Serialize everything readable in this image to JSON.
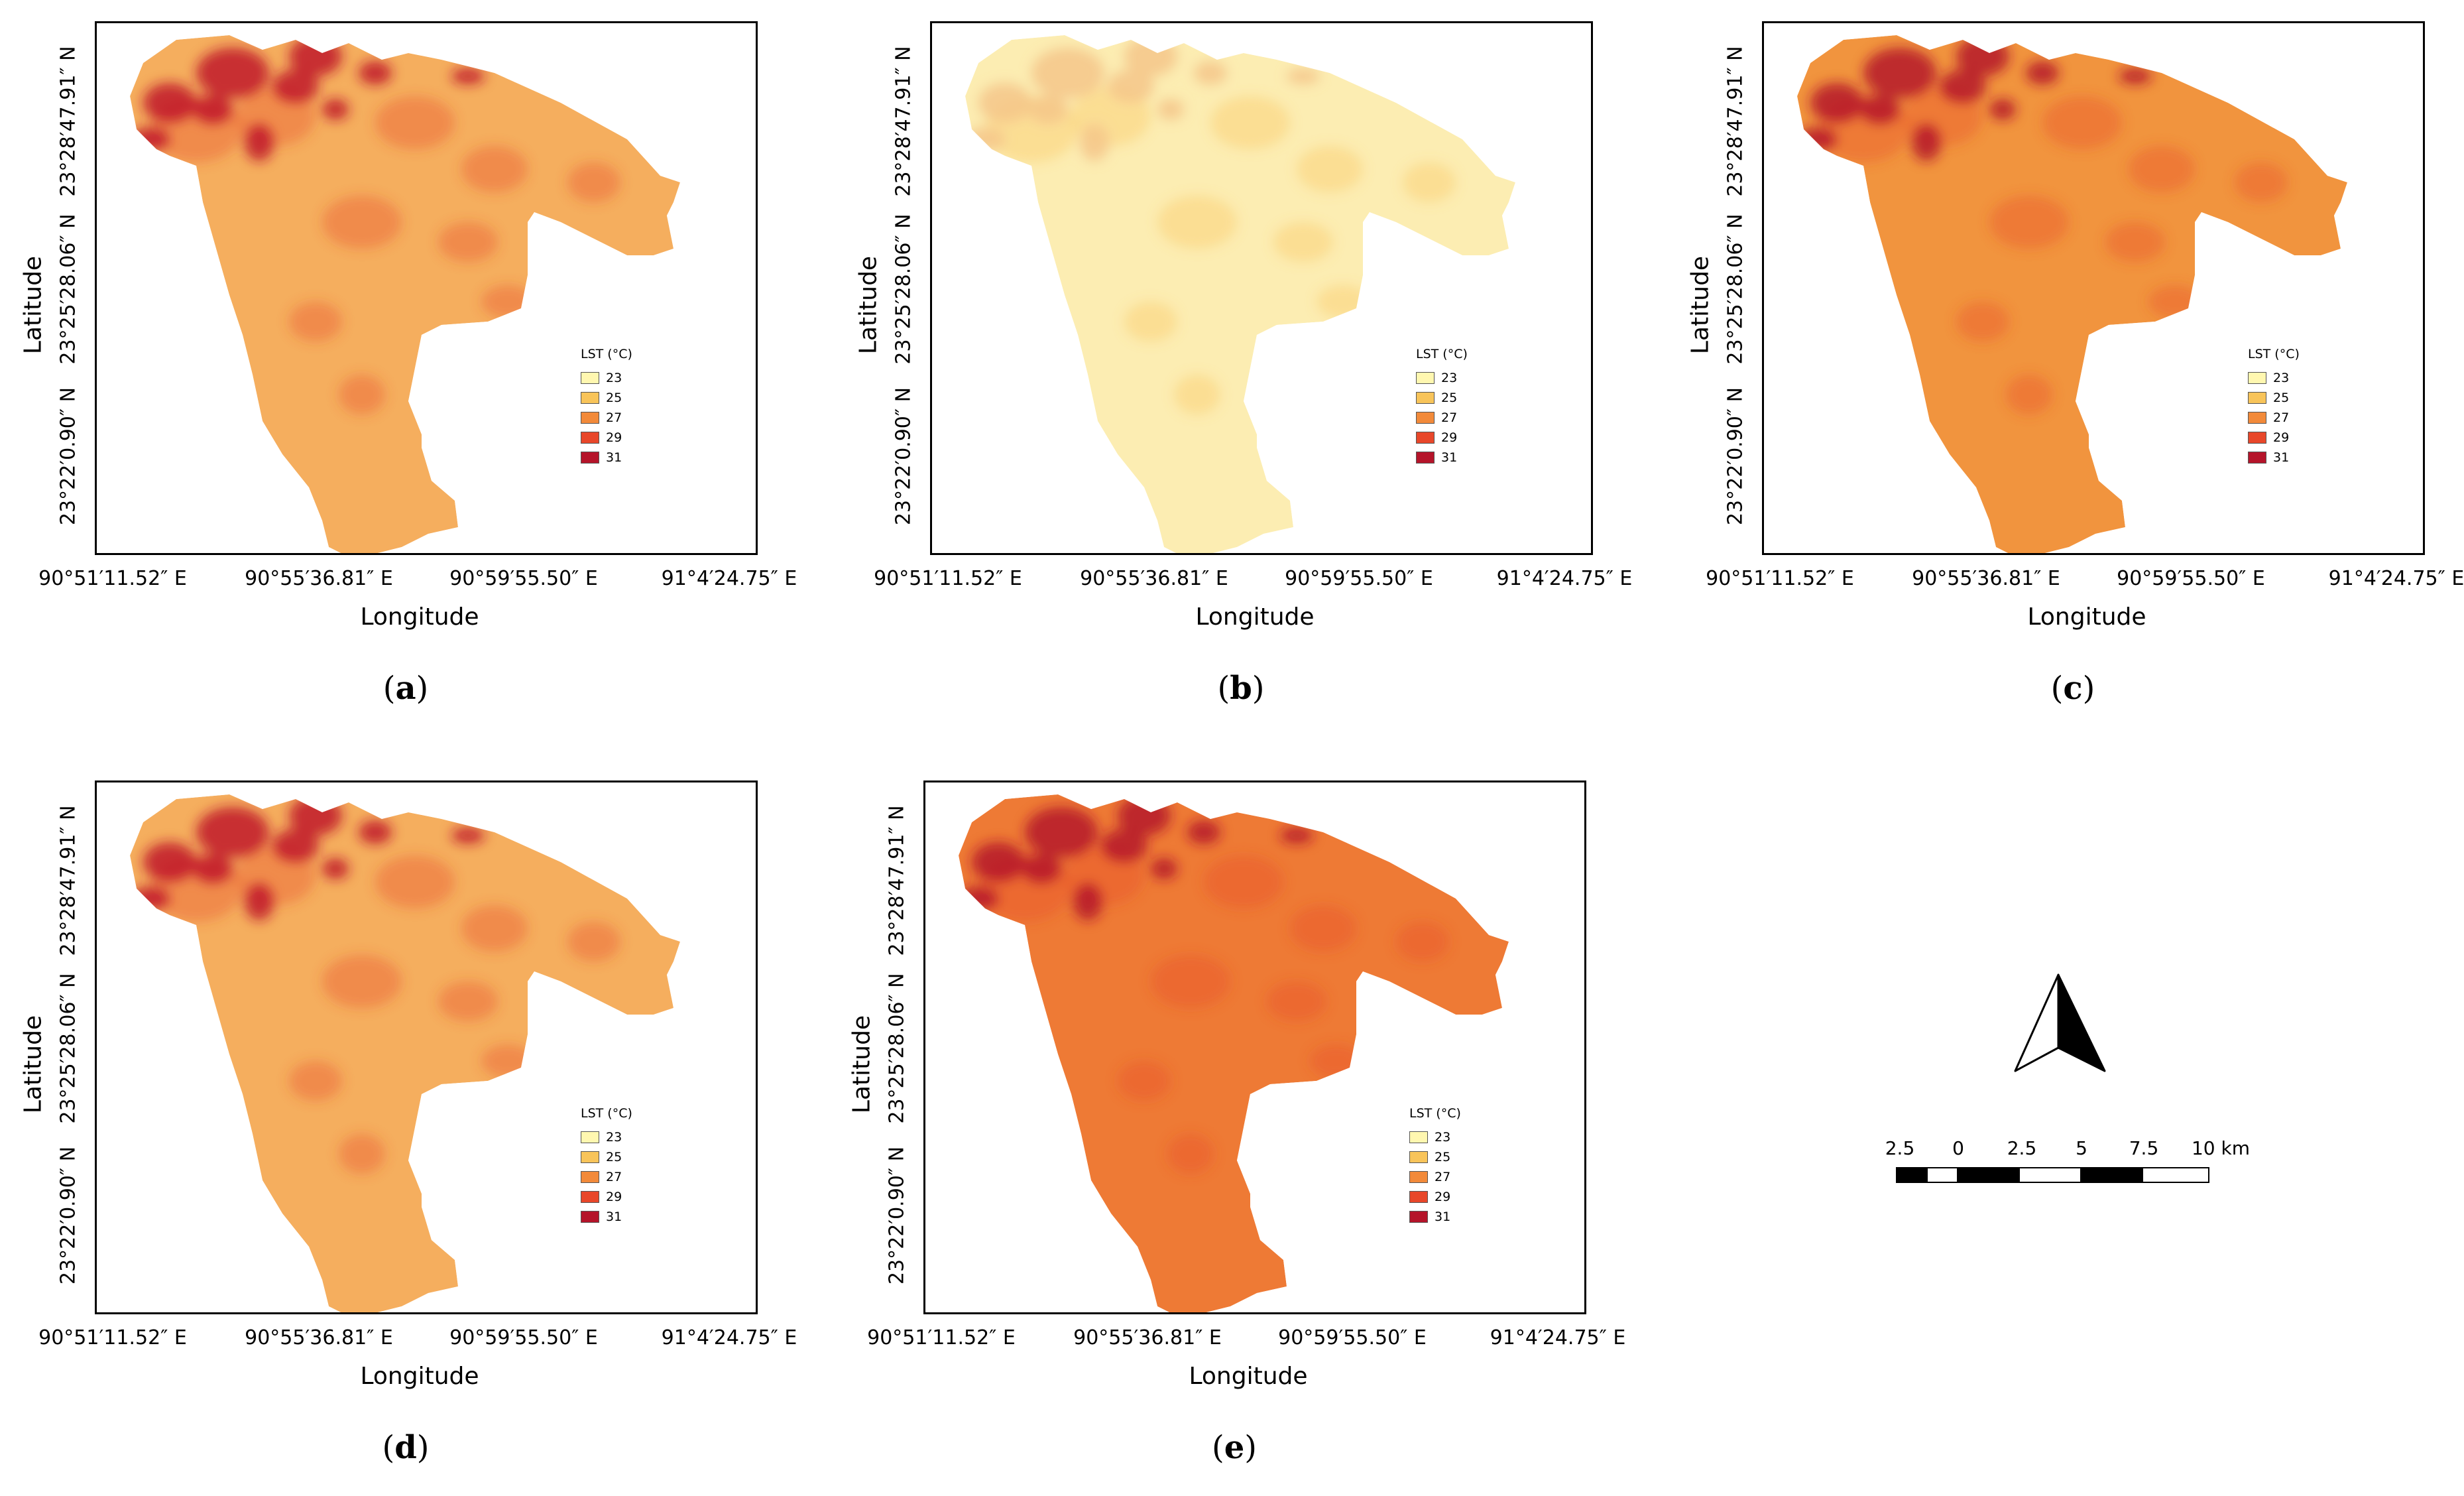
{
  "figure": {
    "panels": [
      {
        "id": "a",
        "label": "a",
        "variant": "medium"
      },
      {
        "id": "b",
        "label": "b",
        "variant": "light"
      },
      {
        "id": "c",
        "label": "c",
        "variant": "dark"
      },
      {
        "id": "d",
        "label": "d",
        "variant": "medium"
      },
      {
        "id": "e",
        "label": "e",
        "variant": "darkest"
      }
    ],
    "axes": {
      "xlabel": "Longitude",
      "ylabel": "Latitude",
      "xticks": [
        "90°51′11.52″ E",
        "90°55′36.81″ E",
        "90°59′55.50″ E",
        "91°4′24.75″ E"
      ],
      "yticks": [
        "23°28′47.91″ N",
        "23°25′28.06″ N",
        "23°22′0.90″ N"
      ]
    },
    "legend": {
      "title": "LST (°C)",
      "entries": [
        {
          "label": "23",
          "color": "#FFF7B0"
        },
        {
          "label": "25",
          "color": "#F8C45A"
        },
        {
          "label": "27",
          "color": "#F28A3A"
        },
        {
          "label": "29",
          "color": "#E8472A"
        },
        {
          "label": "31",
          "color": "#B5142A"
        }
      ]
    },
    "scalebar": {
      "labels": [
        "2.5",
        "0",
        "2.5",
        "5",
        "7.5",
        "10 km"
      ]
    },
    "colors": {
      "light_base": "#FCEDB2",
      "light_hot": "#F5C68A",
      "medium_base": "#F5AE5E",
      "medium_hot": "#C0152A",
      "dark_base": "#F1943E",
      "darkest_base": "#EE7A35"
    }
  }
}
